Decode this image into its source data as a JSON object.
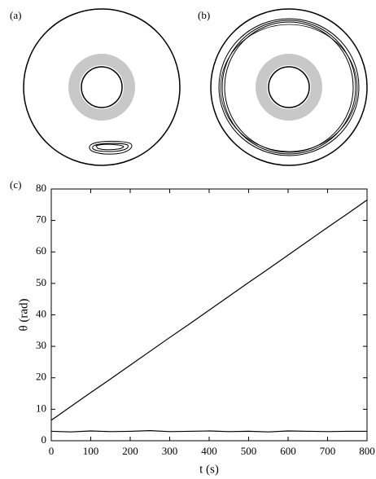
{
  "panel_labels": [
    "(a)",
    "(b)"
  ],
  "chart_data": {
    "type": "line",
    "panel_label": "(c)",
    "xlabel": "t (s)",
    "ylabel": "θ (rad)",
    "x": [
      0,
      50,
      100,
      150,
      200,
      250,
      300,
      350,
      400,
      450,
      500,
      550,
      600,
      650,
      700,
      750,
      800
    ],
    "series": [
      {
        "color": "#000000",
        "values": [
          6.5,
          10.9,
          15.3,
          19.6,
          24.0,
          28.4,
          32.8,
          37.1,
          41.5,
          45.9,
          50.3,
          54.6,
          59.0,
          63.4,
          67.8,
          72.1,
          76.5
        ]
      },
      {
        "color": "#000000",
        "values": [
          3.0,
          2.8,
          3.1,
          2.9,
          3.0,
          3.2,
          2.9,
          3.0,
          3.1,
          2.9,
          3.0,
          2.8,
          3.1,
          3.0,
          2.9,
          3.0,
          3.0
        ]
      }
    ],
    "xlim": [
      0,
      800
    ],
    "xticks": [
      0,
      100,
      200,
      300,
      400,
      500,
      600,
      700,
      800
    ],
    "ylim": [
      0,
      80
    ],
    "yticks": [
      0,
      10,
      20,
      30,
      40,
      50,
      60,
      70,
      80
    ]
  }
}
